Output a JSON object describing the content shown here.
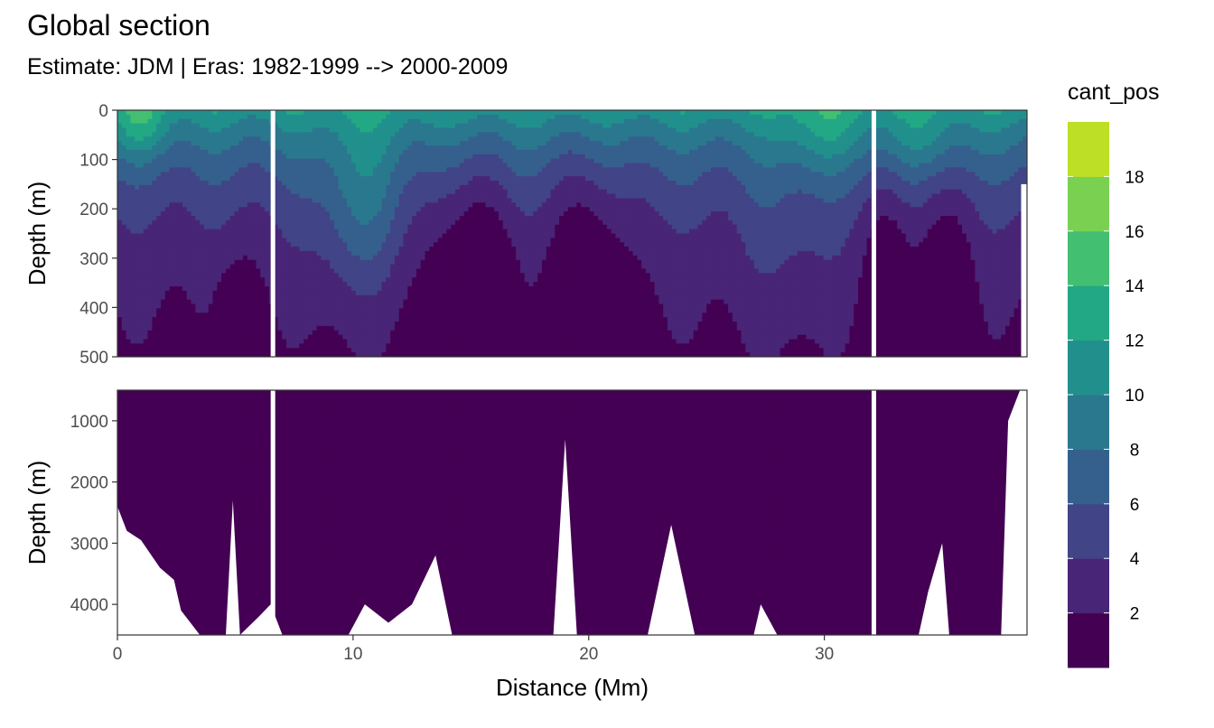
{
  "title": "Global section",
  "subtitle": "Estimate: JDM  | Eras: 1982-1999 --> 2000-2009",
  "chart_data": {
    "type": "heatmap",
    "title": "Global section",
    "subtitle": "Estimate: JDM  | Eras: 1982-1999 --> 2000-2009",
    "xlabel": "Distance (Mm)",
    "ylabel": "Depth (m)",
    "xlim": [
      0,
      38.6
    ],
    "x_ticks": [
      0,
      10,
      20,
      30
    ],
    "x_tick_labels": [
      "0",
      "10",
      "20",
      "30"
    ],
    "gaps_x": [
      6.6,
      32.1
    ],
    "panels": [
      {
        "name": "upper",
        "ylim": [
          0,
          500
        ],
        "y_ticks": [
          0,
          100,
          200,
          300,
          400,
          500
        ],
        "y_tick_labels": [
          "0",
          "100",
          "200",
          "300",
          "400",
          "500"
        ]
      },
      {
        "name": "lower",
        "ylim": [
          500,
          4500
        ],
        "y_ticks": [
          1000,
          2000,
          3000,
          4000
        ],
        "y_tick_labels": [
          "1000",
          "2000",
          "3000",
          "4000"
        ]
      }
    ],
    "legend": {
      "title": "cant_pos",
      "position": "right",
      "breaks": [
        0,
        2,
        4,
        6,
        8,
        10,
        12,
        14,
        16,
        18,
        20
      ],
      "tick_labels": [
        "2",
        "4",
        "6",
        "8",
        "10",
        "12",
        "14",
        "16",
        "18"
      ],
      "colors": [
        "#440154",
        "#482576",
        "#414487",
        "#35608d",
        "#2a788e",
        "#21908c",
        "#22a884",
        "#43bf71",
        "#7ad151",
        "#bddf26",
        "#fde725"
      ]
    },
    "grid": true
  }
}
